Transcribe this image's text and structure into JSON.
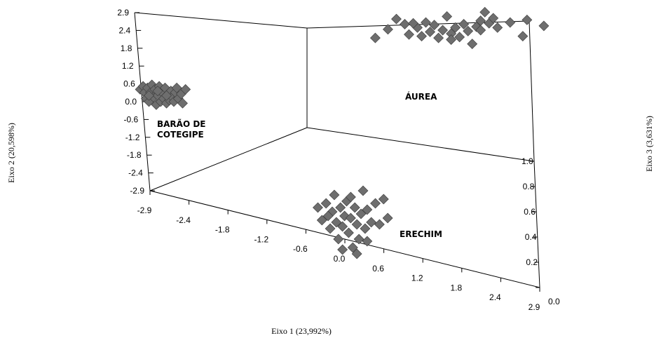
{
  "chart_data": {
    "type": "scatter",
    "projection": "3d",
    "xlabel": "Eixo 1  (23,992%)",
    "ylabel": "Eixo 2  (20,598%)",
    "zlabel": "Eixo 3  (3,631%)",
    "x_ticks": [
      "-2.9",
      "-2.4",
      "-1.8",
      "-1.2",
      "-0.6",
      "0.0",
      "0.6",
      "1.2",
      "1.8",
      "2.4",
      "2.9"
    ],
    "y_ticks": [
      "2.9",
      "2.4",
      "1.8",
      "1.2",
      "0.6",
      "0.0",
      "-0.6",
      "-1.2",
      "-1.8",
      "-2.4",
      "-2.9"
    ],
    "z_ticks": [
      "1.0",
      "0.8",
      "0.6",
      "0.4",
      "0.2",
      "0.0"
    ],
    "xlim": [
      -2.9,
      2.9
    ],
    "ylim": [
      -2.9,
      2.9
    ],
    "zlim": [
      0.0,
      1.0
    ],
    "groups": [
      {
        "label": "BARÃO DE\nCOTEGIPE",
        "points": [
          [
            -2.9,
            0.4
          ],
          [
            -2.8,
            0.5
          ],
          [
            -2.75,
            0.3
          ],
          [
            -2.7,
            0.1
          ],
          [
            -2.65,
            0.45
          ],
          [
            -2.6,
            0.0
          ],
          [
            -2.55,
            0.3
          ],
          [
            -2.5,
            0.55
          ],
          [
            -2.45,
            0.15
          ],
          [
            -2.4,
            0.4
          ],
          [
            -2.35,
            -0.1
          ],
          [
            -2.3,
            0.2
          ],
          [
            -2.25,
            0.5
          ],
          [
            -2.2,
            0.0
          ],
          [
            -2.15,
            0.3
          ],
          [
            -2.1,
            0.1
          ],
          [
            -2.05,
            0.45
          ],
          [
            -2.0,
            -0.05
          ],
          [
            -1.95,
            0.25
          ],
          [
            -1.9,
            0.05
          ],
          [
            -1.85,
            0.35
          ],
          [
            -1.8,
            0.15
          ],
          [
            -1.75,
            0.0
          ],
          [
            -1.7,
            0.3
          ],
          [
            -1.65,
            0.45
          ],
          [
            -1.6,
            0.1
          ],
          [
            -1.5,
            0.25
          ],
          [
            -1.45,
            -0.05
          ],
          [
            -2.6,
            0.2
          ],
          [
            -2.3,
            0.35
          ],
          [
            -2.0,
            0.2
          ],
          [
            -1.35,
            0.4
          ]
        ]
      },
      {
        "label": "ÁUREA",
        "points": [
          [
            1.1,
            1.1
          ],
          [
            1.25,
            1.6
          ],
          [
            1.35,
            2.2
          ],
          [
            1.45,
            1.9
          ],
          [
            1.5,
            1.3
          ],
          [
            1.6,
            1.7
          ],
          [
            1.65,
            1.2
          ],
          [
            1.7,
            2.0
          ],
          [
            1.75,
            1.45
          ],
          [
            1.8,
            1.85
          ],
          [
            1.85,
            1.1
          ],
          [
            1.9,
            1.55
          ],
          [
            1.95,
            2.35
          ],
          [
            2.0,
            1.35
          ],
          [
            2.05,
            1.7
          ],
          [
            2.1,
            1.15
          ],
          [
            2.15,
            1.9
          ],
          [
            2.2,
            1.5
          ],
          [
            2.25,
            0.75
          ],
          [
            2.3,
            1.75
          ],
          [
            2.35,
            2.1
          ],
          [
            2.4,
            2.6
          ],
          [
            2.45,
            1.95
          ],
          [
            2.5,
            2.25
          ],
          [
            2.55,
            1.7
          ],
          [
            2.7,
            2.0
          ],
          [
            2.85,
            1.2
          ],
          [
            2.9,
            2.15
          ],
          [
            3.1,
            1.8
          ],
          [
            1.55,
            1.95
          ],
          [
            2.0,
            1.0
          ],
          [
            2.35,
            1.55
          ]
        ]
      },
      {
        "label": "ERECHIM",
        "points": [
          [
            0.4,
            -1.1
          ],
          [
            0.5,
            -1.4
          ],
          [
            0.6,
            -1.0
          ],
          [
            0.7,
            -1.6
          ],
          [
            0.75,
            -1.2
          ],
          [
            0.8,
            -0.8
          ],
          [
            0.85,
            -1.45
          ],
          [
            0.9,
            -1.85
          ],
          [
            0.95,
            -1.1
          ],
          [
            1.0,
            -1.55
          ],
          [
            1.05,
            -1.3
          ],
          [
            1.1,
            -0.95
          ],
          [
            1.15,
            -1.7
          ],
          [
            1.2,
            -1.35
          ],
          [
            1.25,
            -2.05
          ],
          [
            1.3,
            -1.1
          ],
          [
            1.35,
            -1.5
          ],
          [
            1.4,
            -1.85
          ],
          [
            1.45,
            -1.25
          ],
          [
            1.5,
            -0.7
          ],
          [
            1.55,
            -1.6
          ],
          [
            1.6,
            -1.15
          ],
          [
            1.7,
            -1.45
          ],
          [
            1.8,
            -1.0
          ],
          [
            1.9,
            -1.5
          ],
          [
            2.0,
            -0.9
          ],
          [
            2.1,
            -1.35
          ],
          [
            0.65,
            -1.3
          ],
          [
            1.0,
            -2.1
          ],
          [
            1.2,
            -0.85
          ],
          [
            1.35,
            -2.2
          ],
          [
            1.6,
            -1.9
          ]
        ]
      }
    ]
  }
}
